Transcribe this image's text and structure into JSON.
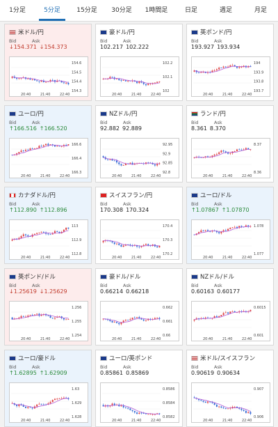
{
  "tabs": [
    "1分足",
    "5分足",
    "15分足",
    "30分足",
    "1時間足",
    "日足",
    "週足",
    "月足"
  ],
  "active_tab": 1,
  "labels": {
    "bid": "Bid",
    "ask": "Ask"
  },
  "colors": {
    "up": "#2a8a3a",
    "down": "#c0392b",
    "candle_up": "#e04848",
    "candle_down": "#3a6fd6",
    "ma": "#b35bd6",
    "accent": "#1f6fb5"
  },
  "cards": [
    {
      "pair": "米ドル/円",
      "flag": "us",
      "bid": "↓154.371",
      "ask": "↓154.373",
      "trend": "down",
      "yticks": [
        "154.6",
        "154.5",
        "154.4",
        "154.3"
      ],
      "xticks": [
        "20:40",
        "21:40",
        "22:40"
      ]
    },
    {
      "pair": "豪ドル/円",
      "flag": "au",
      "bid": "102.217",
      "ask": "102.222",
      "trend": "none",
      "yticks": [
        "102.2",
        "102.1",
        "102"
      ],
      "xticks": [
        "20:40",
        "21:40",
        "22:40"
      ]
    },
    {
      "pair": "英ポンド/円",
      "flag": "gb",
      "bid": "193.927",
      "ask": "193.934",
      "trend": "none",
      "yticks": [
        "194",
        "193.9",
        "193.8",
        "193.7"
      ],
      "xticks": [
        "20:40",
        "21:40",
        "22:40"
      ]
    },
    {
      "pair": "ユーロ/円",
      "flag": "eu",
      "bid": "↑166.516",
      "ask": "↑166.520",
      "trend": "up",
      "yticks": [
        "166.6",
        "166.4",
        "166.3"
      ],
      "xticks": [
        "20:40",
        "21:40",
        "22:40"
      ]
    },
    {
      "pair": "NZドル/円",
      "flag": "nz",
      "bid": "92.882",
      "ask": "92.889",
      "trend": "none",
      "yticks": [
        "92.95",
        "92.9",
        "92.85",
        "92.8"
      ],
      "xticks": [
        "20:40",
        "21:40",
        "22:40"
      ]
    },
    {
      "pair": "ランド/円",
      "flag": "za",
      "bid": "8.361",
      "ask": "8.370",
      "trend": "none",
      "yticks": [
        "8.37",
        "8.36"
      ],
      "xticks": [
        "20:40",
        "21:40",
        "22:40"
      ]
    },
    {
      "pair": "カナダドル/円",
      "flag": "ca",
      "bid": "↑112.890",
      "ask": "↑112.896",
      "trend": "up",
      "yticks": [
        "113",
        "112.9",
        "112.8"
      ],
      "xticks": [
        "20:40",
        "21:40",
        "22:40"
      ]
    },
    {
      "pair": "スイスフラン/円",
      "flag": "ch",
      "bid": "170.308",
      "ask": "170.324",
      "trend": "none",
      "yticks": [
        "170.4",
        "170.3",
        "170.2"
      ],
      "xticks": [
        "20:40",
        "21:40",
        "22:40"
      ]
    },
    {
      "pair": "ユーロ/ドル",
      "flag": "eu",
      "bid": "↑1.07867",
      "ask": "↑1.07870",
      "trend": "up",
      "yticks": [
        "1.078",
        "1.077"
      ],
      "xticks": [
        "20:40",
        "21:40",
        "22:40"
      ]
    },
    {
      "pair": "英ポンド/ドル",
      "flag": "gb",
      "bid": "↓1.25619",
      "ask": "↓1.25629",
      "trend": "down",
      "yticks": [
        "1.256",
        "1.255",
        "1.254"
      ],
      "xticks": [
        "20:40",
        "21:40",
        "22:40"
      ]
    },
    {
      "pair": "豪ドル/ドル",
      "flag": "au",
      "bid": "0.66214",
      "ask": "0.66218",
      "trend": "none",
      "yticks": [
        "0.662",
        "0.661",
        "0.66"
      ],
      "xticks": [
        "20:40",
        "21:40",
        "22:40"
      ]
    },
    {
      "pair": "NZドル/ドル",
      "flag": "nz",
      "bid": "0.60163",
      "ask": "0.60177",
      "trend": "none",
      "yticks": [
        "0.6015",
        "0.601"
      ],
      "xticks": [
        "20:40",
        "21:40",
        "22:40"
      ]
    },
    {
      "pair": "ユーロ/豪ドル",
      "flag": "eu",
      "bid": "↑1.62895",
      "ask": "↑1.62909",
      "trend": "up",
      "yticks": [
        "1.63",
        "1.629",
        "1.628"
      ],
      "xticks": [
        "20:40",
        "21:40",
        "22:40"
      ]
    },
    {
      "pair": "ユーロ/英ポンド",
      "flag": "eu",
      "bid": "0.85861",
      "ask": "0.85869",
      "trend": "none",
      "yticks": [
        "0.8586",
        "0.8584",
        "0.8582"
      ],
      "xticks": [
        "20:40",
        "21:40",
        "22:40"
      ]
    },
    {
      "pair": "米ドル/スイスフラン",
      "flag": "us",
      "bid": "0.90619",
      "ask": "0.90634",
      "trend": "none",
      "yticks": [
        "0.907",
        "0.906"
      ],
      "xticks": [
        "20:40",
        "21:40",
        "22:40"
      ]
    }
  ]
}
